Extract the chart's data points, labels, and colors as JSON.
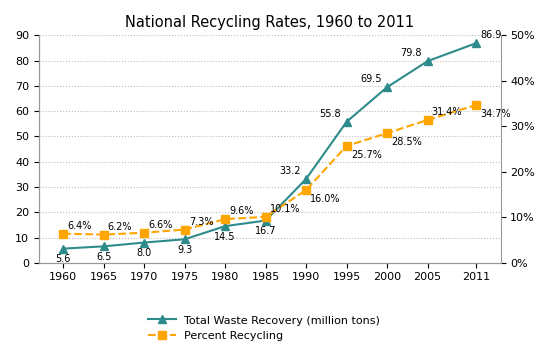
{
  "title": "National Recycling Rates, 1960 to 2011",
  "years": [
    1960,
    1965,
    1970,
    1975,
    1980,
    1985,
    1990,
    1995,
    2000,
    2005,
    2011
  ],
  "waste_recovery": [
    5.6,
    6.5,
    8.0,
    9.3,
    14.5,
    16.7,
    33.2,
    55.8,
    69.5,
    79.8,
    86.9
  ],
  "pct_recycling": [
    6.4,
    6.2,
    6.6,
    7.3,
    9.6,
    10.1,
    16.0,
    25.7,
    28.5,
    31.4,
    34.7
  ],
  "waste_labels": [
    "5.6",
    "6.5",
    "8.0",
    "9.3",
    "14.5",
    "16.7",
    "33.2",
    "55.8",
    "69.5",
    "79.8",
    "86.9"
  ],
  "pct_labels": [
    "6.4%",
    "6.2%",
    "6.6%",
    "7.3%",
    "9.6%",
    "10.1%",
    "16.0%",
    "25.7%",
    "28.5%",
    "31.4%",
    "34.7%"
  ],
  "waste_color": "#2e8b8b",
  "pct_color": "#FFA500",
  "ylim_left": [
    0,
    90
  ],
  "ylim_right": [
    0,
    50
  ],
  "yticks_left": [
    0,
    10,
    20,
    30,
    40,
    50,
    60,
    70,
    80,
    90
  ],
  "yticks_right_vals": [
    0,
    10,
    20,
    30,
    40,
    50
  ],
  "yticks_right_labels": [
    "0%",
    "10%",
    "20%",
    "30%",
    "40%",
    "50%"
  ],
  "bg_color": "#ffffff",
  "grid_color": "#bbbbbb"
}
